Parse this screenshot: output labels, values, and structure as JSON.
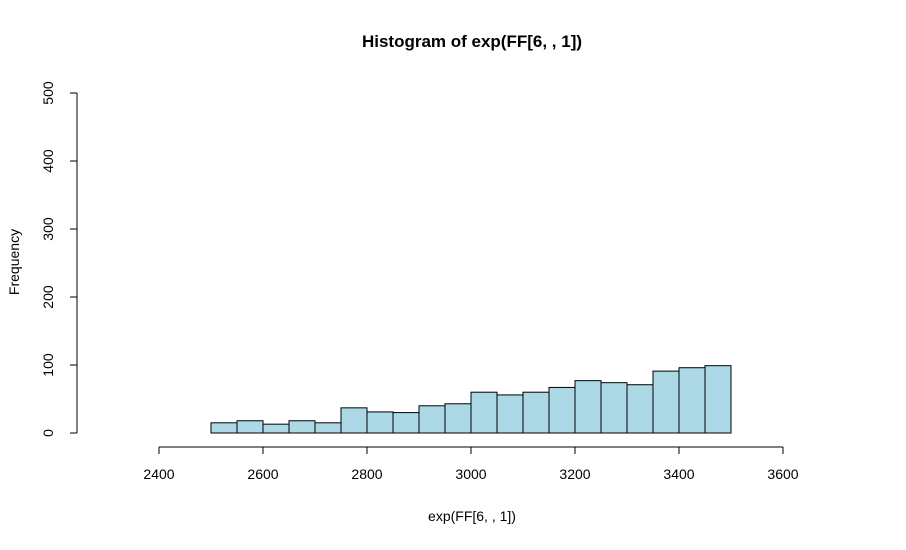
{
  "chart_data": {
    "type": "bar",
    "title": "Histogram of exp(FF[6, , 1])",
    "xlabel": "exp(FF[6, , 1])",
    "ylabel": "Frequency",
    "bar_color": "#add8e6",
    "bin_edges": [
      2500,
      2550,
      2600,
      2650,
      2700,
      2750,
      2800,
      2850,
      2900,
      2950,
      3000,
      3050,
      3100,
      3150,
      3200,
      3250,
      3300,
      3350,
      3400,
      3450,
      3500
    ],
    "values": [
      15,
      18,
      13,
      18,
      15,
      37,
      31,
      30,
      40,
      43,
      60,
      56,
      60,
      67,
      77,
      74,
      71,
      91,
      96,
      99
    ],
    "xlim": [
      2400,
      3600
    ],
    "ylim": [
      0,
      500
    ],
    "xticks": [
      2400,
      2600,
      2800,
      3000,
      3200,
      3400,
      3600
    ],
    "yticks": [
      0,
      100,
      200,
      300,
      400,
      500
    ],
    "grid": false,
    "legend": "none"
  }
}
